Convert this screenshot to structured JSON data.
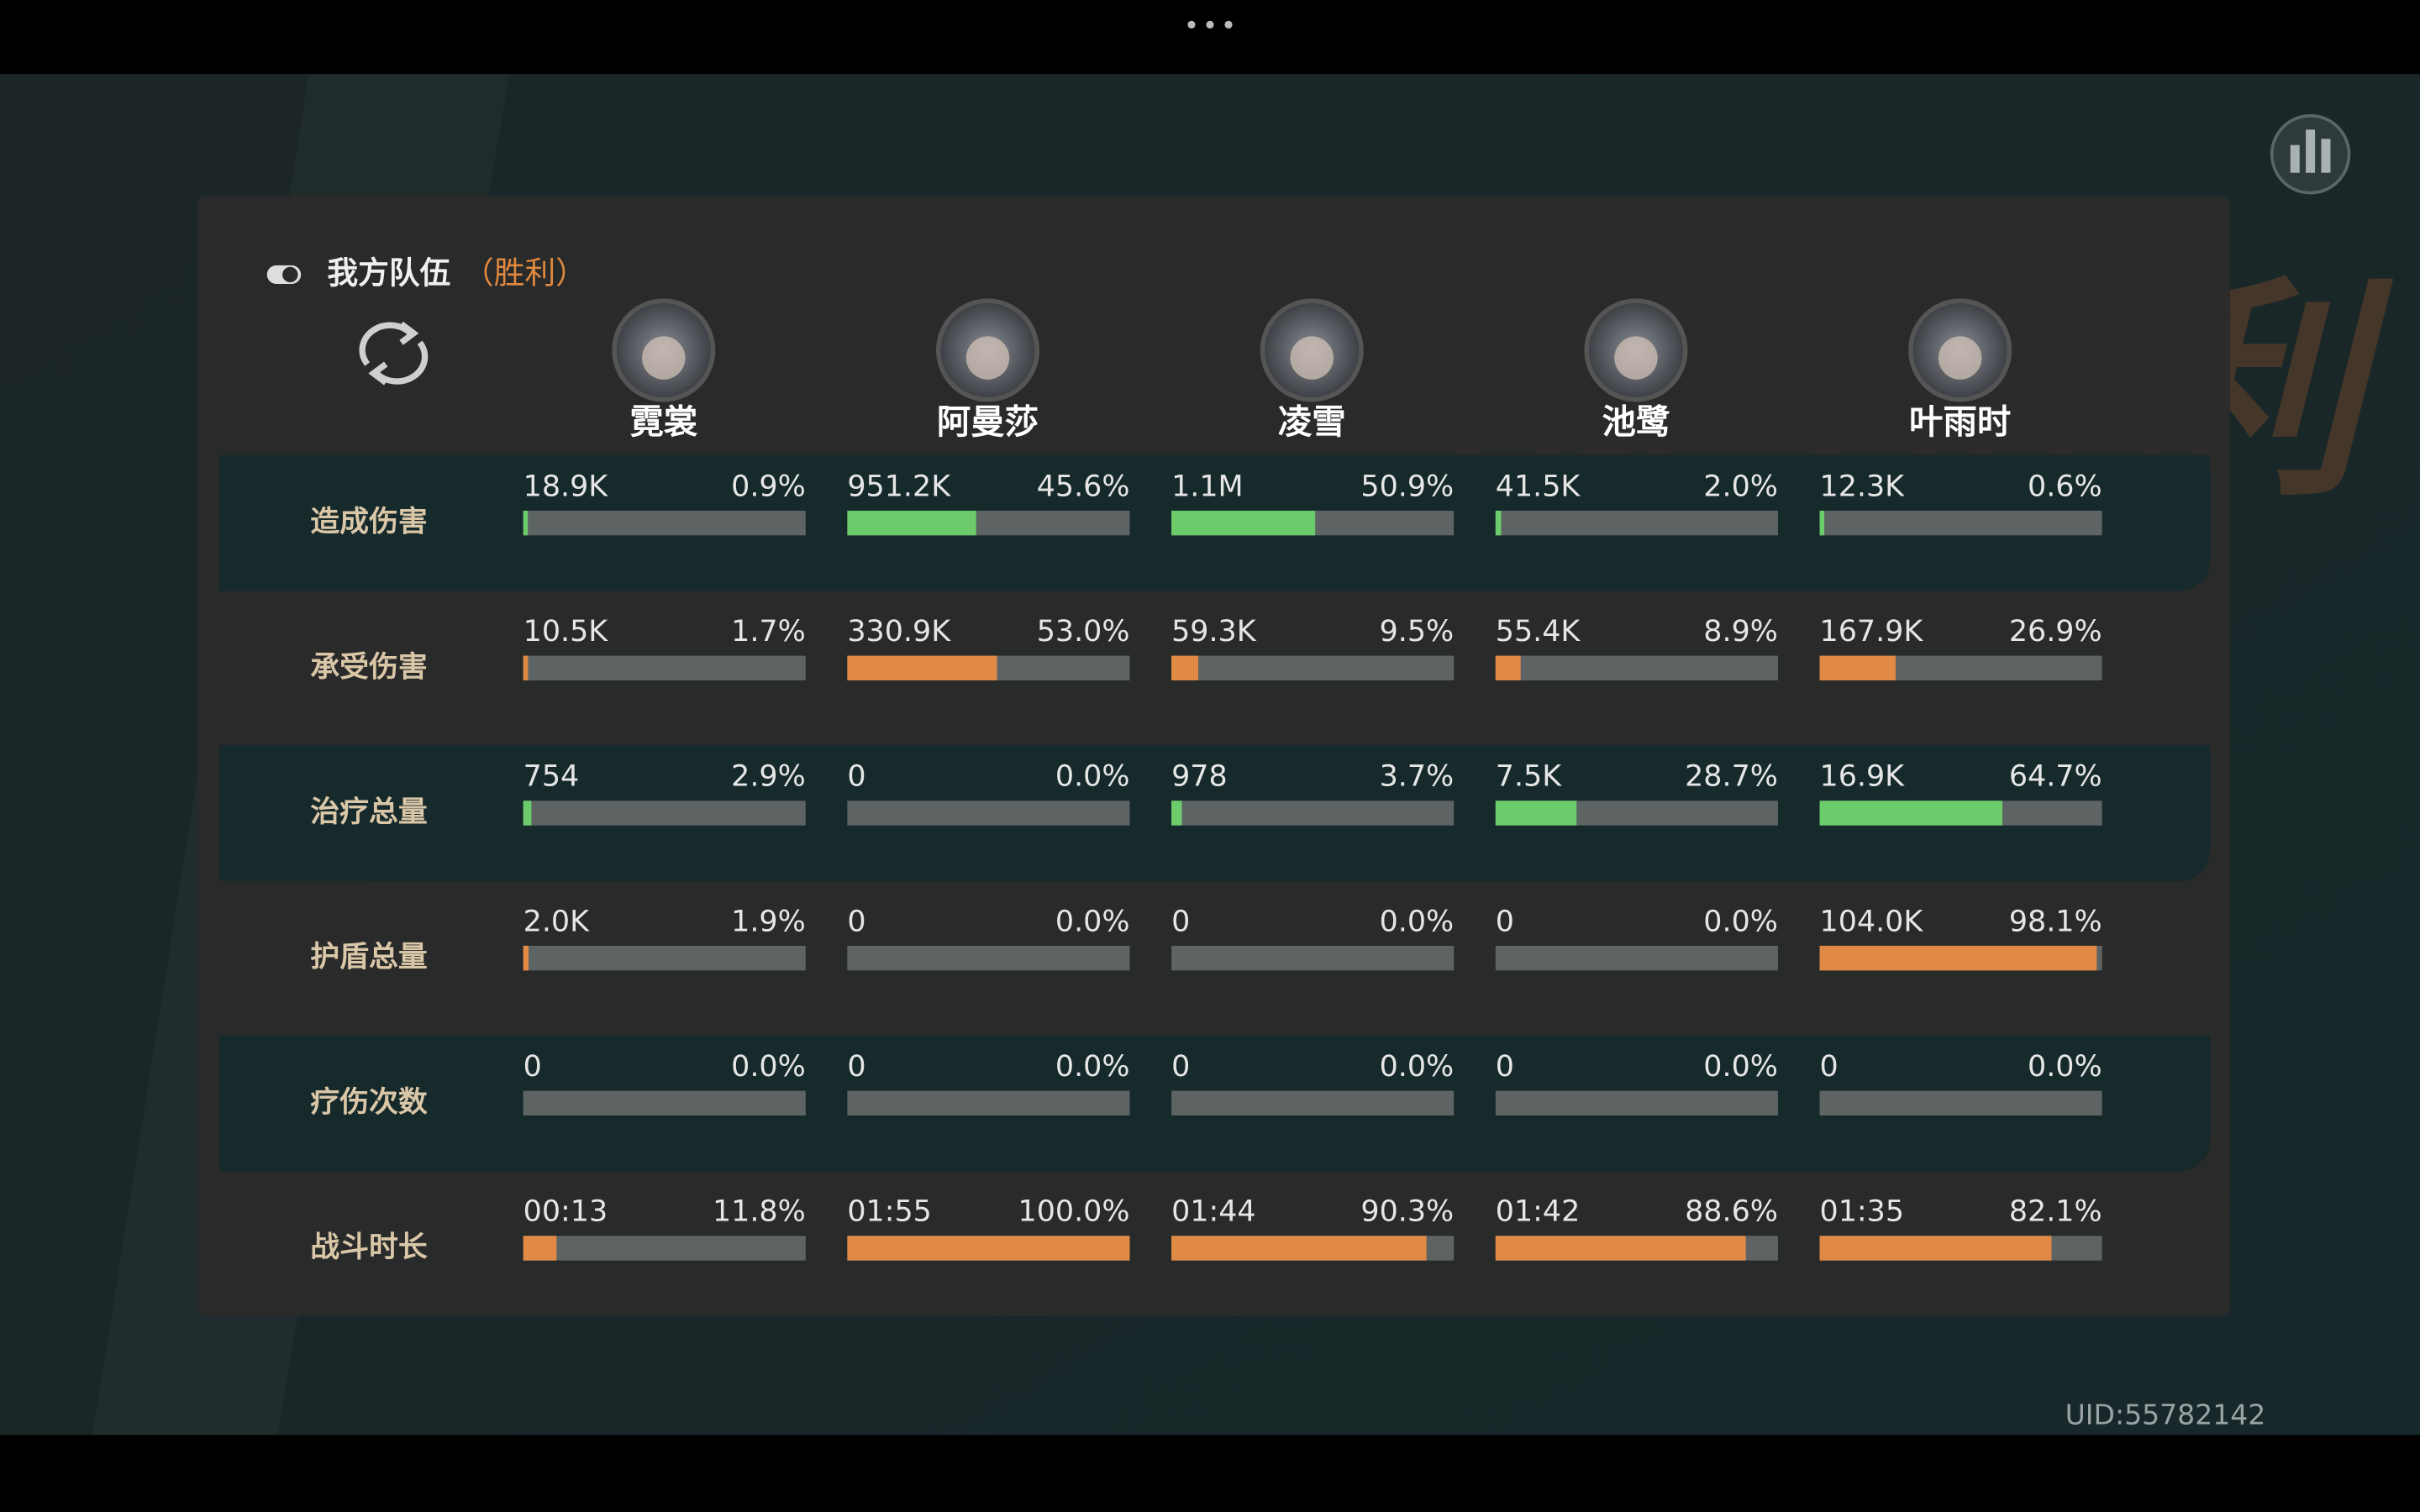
{
  "banner": "战斗胜利",
  "header": {
    "title": "我方队伍",
    "result": "（胜利）"
  },
  "characters": [
    "霓裳",
    "阿曼莎",
    "凌雪",
    "池鹭",
    "叶雨时"
  ],
  "rows": [
    {
      "label": "造成伤害",
      "color": "#6ccb6a",
      "cells": [
        {
          "value": "18.9K",
          "percent": {
            "value": 0.9,
            "label": "0.9%"
          }
        },
        {
          "value": "951.2K",
          "percent": {
            "value": 45.6,
            "label": "45.6%"
          }
        },
        {
          "value": "1.1M",
          "percent": {
            "value": 50.9,
            "label": "50.9%"
          }
        },
        {
          "value": "41.5K",
          "percent": {
            "value": 2.0,
            "label": "2.0%"
          }
        },
        {
          "value": "12.3K",
          "percent": {
            "value": 0.6,
            "label": "0.6%"
          }
        }
      ]
    },
    {
      "label": "承受伤害",
      "color": "#e08a45",
      "cells": [
        {
          "value": "10.5K",
          "percent": {
            "value": 1.7,
            "label": "1.7%"
          }
        },
        {
          "value": "330.9K",
          "percent": {
            "value": 53.0,
            "label": "53.0%"
          }
        },
        {
          "value": "59.3K",
          "percent": {
            "value": 9.5,
            "label": "9.5%"
          }
        },
        {
          "value": "55.4K",
          "percent": {
            "value": 8.9,
            "label": "8.9%"
          }
        },
        {
          "value": "167.9K",
          "percent": {
            "value": 26.9,
            "label": "26.9%"
          }
        }
      ]
    },
    {
      "label": "治疗总量",
      "color": "#6ccb6a",
      "cells": [
        {
          "value": "754",
          "percent": {
            "value": 2.9,
            "label": "2.9%"
          }
        },
        {
          "value": "0",
          "percent": {
            "value": 0,
            "label": "0.0%"
          }
        },
        {
          "value": "978",
          "percent": {
            "value": 3.7,
            "label": "3.7%"
          }
        },
        {
          "value": "7.5K",
          "percent": {
            "value": 28.7,
            "label": "28.7%"
          }
        },
        {
          "value": "16.9K",
          "percent": {
            "value": 64.7,
            "label": "64.7%"
          }
        }
      ]
    },
    {
      "label": "护盾总量",
      "color": "#e08a45",
      "cells": [
        {
          "value": "2.0K",
          "percent": {
            "value": 1.9,
            "label": "1.9%"
          }
        },
        {
          "value": "0",
          "percent": {
            "value": 0,
            "label": "0.0%"
          }
        },
        {
          "value": "0",
          "percent": {
            "value": 0,
            "label": "0.0%"
          }
        },
        {
          "value": "0",
          "percent": {
            "value": 0,
            "label": "0.0%"
          }
        },
        {
          "value": "104.0K",
          "percent": {
            "value": 98.1,
            "label": "98.1%"
          }
        }
      ]
    },
    {
      "label": "疗伤次数",
      "color": "#6ccb6a",
      "cells": [
        {
          "value": "0",
          "percent": {
            "value": 0,
            "label": "0.0%"
          }
        },
        {
          "value": "0",
          "percent": {
            "value": 0,
            "label": "0.0%"
          }
        },
        {
          "value": "0",
          "percent": {
            "value": 0,
            "label": "0.0%"
          }
        },
        {
          "value": "0",
          "percent": {
            "value": 0,
            "label": "0.0%"
          }
        },
        {
          "value": "0",
          "percent": {
            "value": 0,
            "label": "0.0%"
          }
        }
      ]
    },
    {
      "label": "战斗时长",
      "color": "#e08a45",
      "cells": [
        {
          "value": "00:13",
          "percent": {
            "value": 11.8,
            "label": "11.8%"
          }
        },
        {
          "value": "01:55",
          "percent": {
            "value": 100.0,
            "label": "100.0%"
          }
        },
        {
          "value": "01:44",
          "percent": {
            "value": 90.3,
            "label": "90.3%"
          }
        },
        {
          "value": "01:42",
          "percent": {
            "value": 88.6,
            "label": "88.6%"
          }
        },
        {
          "value": "01:35",
          "percent": {
            "value": 82.1,
            "label": "82.1%"
          }
        }
      ]
    }
  ],
  "uid": "UID:55782142"
}
